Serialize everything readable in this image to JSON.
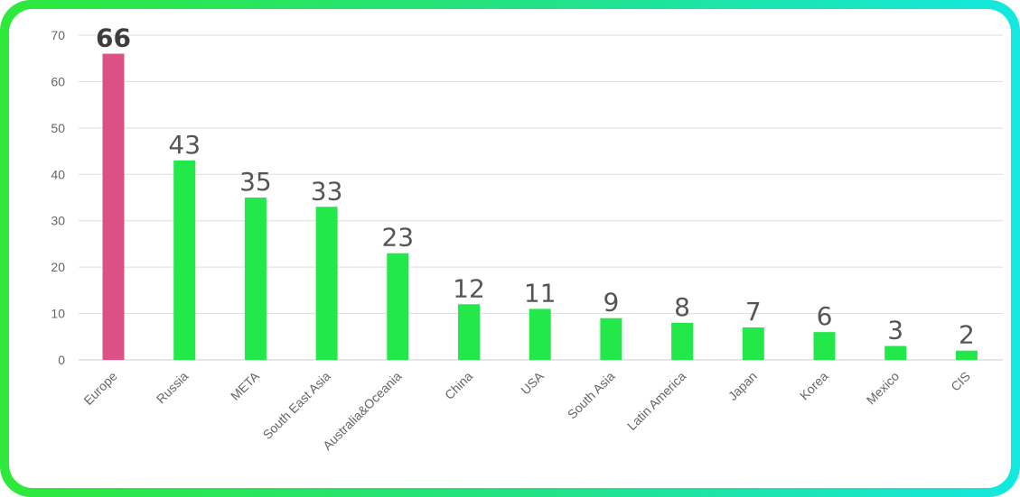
{
  "chart_data": {
    "type": "bar",
    "categories": [
      "Europe",
      "Russia",
      "META",
      "South East Asia",
      "Australia&Oceania",
      "China",
      "USA",
      "South Asia",
      "Latin America",
      "Japan",
      "Korea",
      "Mexico",
      "CIS"
    ],
    "values": [
      66,
      43,
      35,
      33,
      23,
      12,
      11,
      9,
      8,
      7,
      6,
      3,
      2
    ],
    "ylim": [
      0,
      70
    ],
    "yticks": [
      0,
      10,
      20,
      30,
      40,
      50,
      60,
      70
    ],
    "grid": true,
    "highlight_index": 0,
    "colors": {
      "bar": "#22e84a",
      "highlight": "#dc5185",
      "grid": "#dddddd",
      "border_start": "#2ee83a",
      "border_end": "#14e8e0"
    },
    "title": "",
    "xlabel": "",
    "ylabel": ""
  }
}
